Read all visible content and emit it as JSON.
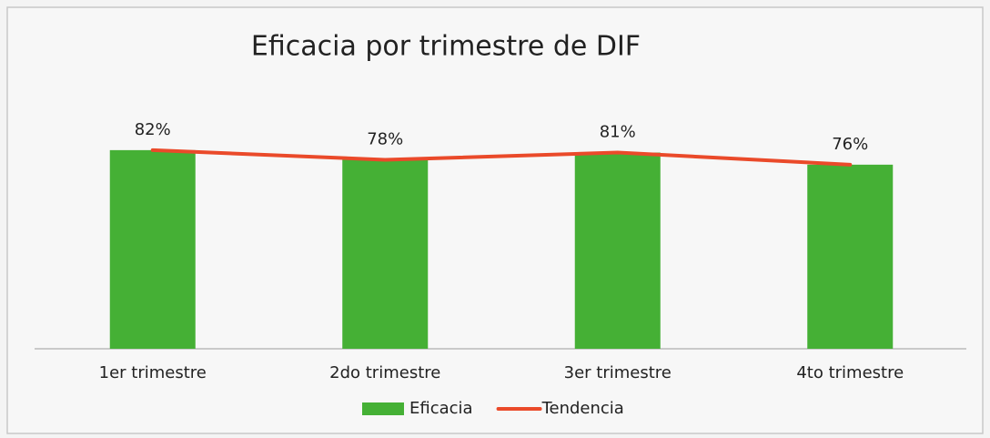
{
  "chart_data": {
    "type": "bar",
    "title": "Eficacia por trimestre de DIF",
    "categories": [
      "1er trimestre",
      "2do trimestre",
      "3er trimestre",
      "4to trimestre"
    ],
    "series": [
      {
        "name": "Eficacia",
        "type": "bar",
        "color": "#45b035",
        "values": [
          82,
          78,
          81,
          76
        ],
        "value_labels": [
          "82%",
          "78%",
          "81%",
          "76%"
        ]
      },
      {
        "name": "Tendencia",
        "type": "line",
        "color": "#ea4a2a",
        "values": [
          82,
          78,
          81,
          76
        ]
      }
    ],
    "ylim": [
      0,
      100
    ],
    "legend": "bottom"
  }
}
